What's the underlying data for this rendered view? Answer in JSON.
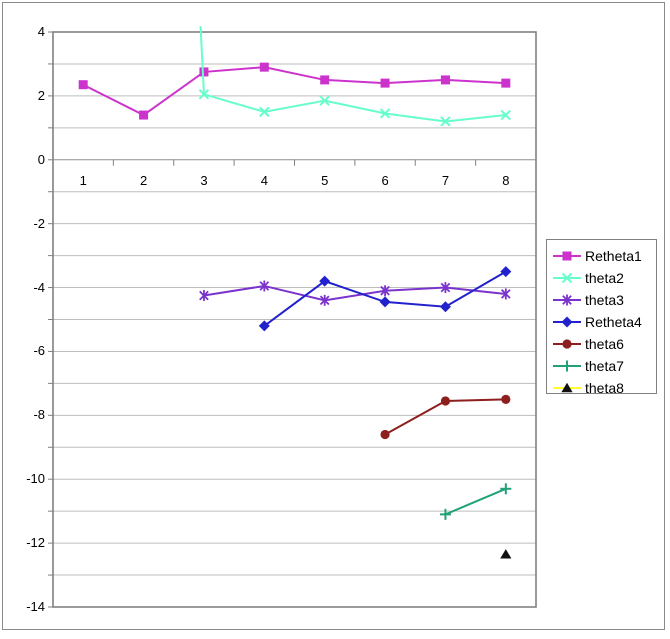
{
  "chart_data": {
    "type": "line",
    "title": "",
    "xlabel": "",
    "ylabel": "",
    "categories": [
      1,
      2,
      3,
      4,
      5,
      6,
      7,
      8
    ],
    "x_tick_labels": [
      "1",
      "2",
      "3",
      "4",
      "5",
      "6",
      "7",
      "8"
    ],
    "y_tick_labels": [
      "4",
      "2",
      "0",
      "-2",
      "-4",
      "-6",
      "-8",
      "-10",
      "-12",
      "-14"
    ],
    "ylim": [
      -14,
      4
    ],
    "y_label_step": 2,
    "y_gridline_step": 1,
    "grid": "horizontal minor gridlines on",
    "legend_position": "right",
    "series": [
      {
        "name": "Retheta1",
        "color": "#cc33cc",
        "marker": "square",
        "values": [
          2.35,
          1.4,
          2.75,
          2.9,
          2.5,
          2.4,
          2.5,
          2.4
        ]
      },
      {
        "name": "theta2",
        "color": "#66ffcc",
        "marker": "x",
        "values": [
          null,
          40,
          2.05,
          1.5,
          1.85,
          1.45,
          1.2,
          1.4
        ],
        "note": "value at x=2 is far above axis max; line clipped at plot top near x=3"
      },
      {
        "name": "theta3",
        "color": "#7a33cc",
        "marker": "asterisk",
        "values": [
          null,
          null,
          -4.25,
          -3.95,
          -4.4,
          -4.1,
          -4.0,
          -4.2
        ]
      },
      {
        "name": "Retheta4",
        "color": "#2222cc",
        "marker": "diamond",
        "values": [
          null,
          null,
          null,
          -5.2,
          -3.8,
          -4.45,
          -4.6,
          -3.5
        ]
      },
      {
        "name": "theta6",
        "color": "#8e1f1f",
        "marker": "circle",
        "values": [
          null,
          null,
          null,
          null,
          null,
          -8.6,
          -7.55,
          -7.5
        ]
      },
      {
        "name": "theta7",
        "color": "#21a179",
        "marker": "plus",
        "values": [
          null,
          null,
          null,
          null,
          null,
          null,
          -11.1,
          -10.3
        ]
      },
      {
        "name": "theta8",
        "color": "#ffff33",
        "marker": "triangle",
        "marker_color": "#111111",
        "values": [
          null,
          null,
          null,
          null,
          null,
          null,
          null,
          -12.35
        ]
      }
    ],
    "colors": {
      "gridline": "#bdbdbd",
      "zero_axis": "#8f8f8f",
      "plot_border": "#808080",
      "tick": "#808080",
      "outer_border": "#8a8a8a",
      "background": "#ffffff",
      "text": "#000000"
    }
  }
}
